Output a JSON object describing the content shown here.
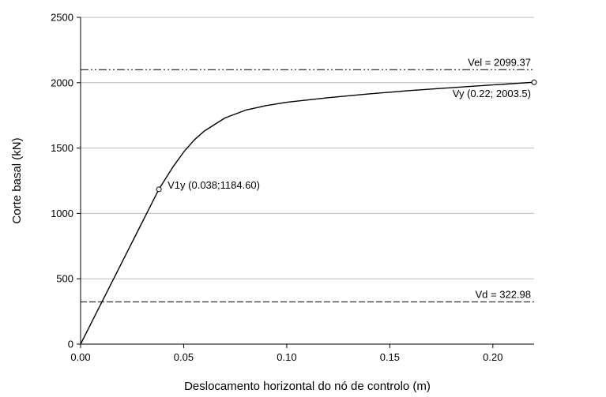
{
  "chart_data": {
    "type": "line",
    "title": "",
    "xlabel": "Deslocamento horizontal do nó de controlo (m)",
    "ylabel": "Corte basal (kN)",
    "xlim": [
      0,
      0.22
    ],
    "ylim": [
      0,
      2500
    ],
    "xticks": [
      0,
      0.05,
      0.1,
      0.15,
      0.2
    ],
    "xtick_labels": [
      "0.00",
      "0.05",
      "0.10",
      "0.15",
      "0.20"
    ],
    "yticks": [
      0,
      500,
      1000,
      1500,
      2000,
      2500
    ],
    "ytick_labels": [
      "0",
      "500",
      "1000",
      "1500",
      "2000",
      "2500"
    ],
    "grid": "horizontal",
    "legend": "none",
    "series": [
      {
        "color": "#000000",
        "x": [
          0,
          0.01,
          0.02,
          0.03,
          0.038,
          0.045,
          0.05,
          0.055,
          0.06,
          0.07,
          0.08,
          0.09,
          0.1,
          0.12,
          0.14,
          0.16,
          0.18,
          0.2,
          0.22
        ],
        "y": [
          0,
          312,
          624,
          936,
          1184.6,
          1360,
          1470,
          1560,
          1630,
          1730,
          1790,
          1825,
          1850,
          1885,
          1915,
          1940,
          1962,
          1983,
          2003.5
        ]
      }
    ],
    "reference_lines": [
      {
        "y": 2099.37,
        "style": "dash-dot-dot",
        "label": "Vel = 2099.37"
      },
      {
        "y": 322.98,
        "style": "dashed",
        "label": "Vd = 322.98"
      }
    ],
    "points": [
      {
        "x": 0.038,
        "y": 1184.6,
        "label": "V1y (0.038;1184.60)"
      },
      {
        "x": 0.22,
        "y": 2003.5,
        "label": "Vy (0.22; 2003.5)"
      }
    ]
  }
}
